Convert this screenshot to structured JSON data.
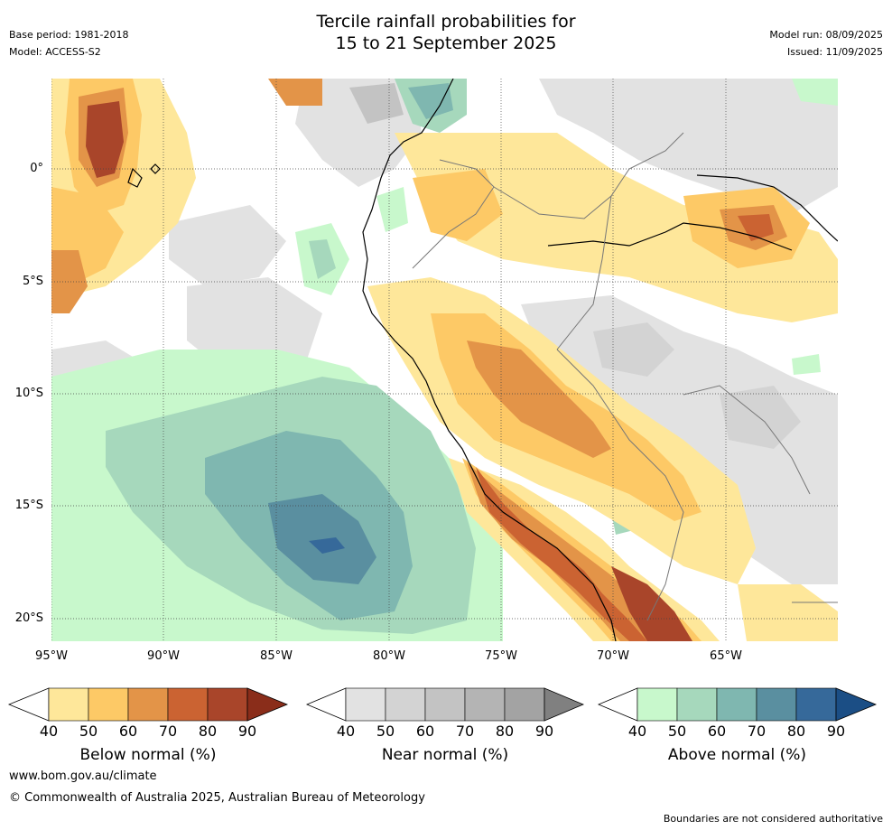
{
  "header": {
    "title_line1": "Tercile rainfall probabilities for",
    "title_line2": "15 to 21 September 2025",
    "base_period": "Base period: 1981-2018",
    "model": "Model: ACCESS-S2",
    "model_run": "Model run: 08/09/2025",
    "issued": "Issued: 11/09/2025"
  },
  "map": {
    "lat_labels": [
      "0°",
      "5°S",
      "10°S",
      "15°S",
      "20°S"
    ],
    "lon_labels": [
      "95°W",
      "90°W",
      "85°W",
      "80°W",
      "75°W",
      "70°W",
      "65°W"
    ]
  },
  "legends": {
    "below": {
      "label": "Below normal (%)",
      "ticks": [
        "40",
        "50",
        "60",
        "70",
        "80",
        "90"
      ],
      "colors": [
        "#fee79a",
        "#fdc966",
        "#e39448",
        "#cb6332",
        "#a9452a",
        "#8a2d1a"
      ]
    },
    "near": {
      "label": "Near normal (%)",
      "ticks": [
        "40",
        "50",
        "60",
        "70",
        "80",
        "90"
      ],
      "colors": [
        "#e2e2e2",
        "#d3d3d3",
        "#c3c3c3",
        "#b4b4b4",
        "#a3a3a3",
        "#808080"
      ]
    },
    "above": {
      "label": "Above normal (%)",
      "ticks": [
        "40",
        "50",
        "60",
        "70",
        "80",
        "90"
      ],
      "colors": [
        "#c8f8cc",
        "#a6d8bc",
        "#7fb7b0",
        "#5a8fa0",
        "#36699a",
        "#1b4e85"
      ]
    }
  },
  "footer": {
    "website": "www.bom.gov.au/climate",
    "copyright": "© Commonwealth of Australia 2025, Australian Bureau of Meteorology",
    "disclaimer": "Boundaries are not considered authoritative"
  }
}
